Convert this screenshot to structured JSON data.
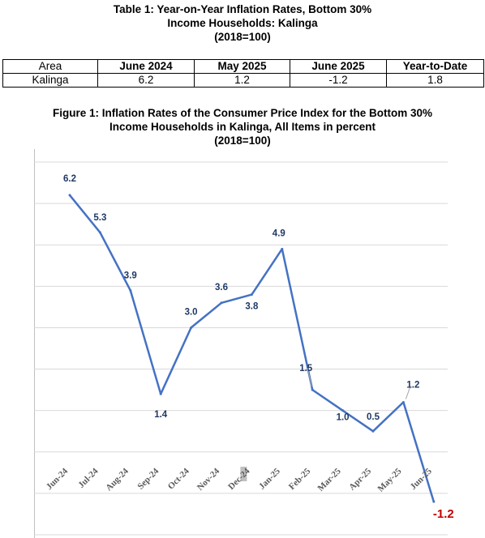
{
  "table": {
    "title_lines": [
      "Table 1:  Year-on-Year Inflation Rates, Bottom 30%",
      "Income Households: Kalinga",
      "(2018=100)"
    ],
    "headers": [
      "Area",
      "June 2024",
      "May 2025",
      "June 2025",
      "Year-to-Date"
    ],
    "rows": [
      [
        "Kalinga",
        "6.2",
        "1.2",
        "-1.2",
        "1.8"
      ]
    ]
  },
  "figure": {
    "title_lines": [
      "Figure 1: Inflation Rates of the Consumer Price Index for the Bottom 30%",
      "Income Households in Kalinga, All Items in percent",
      "(2018=100)"
    ]
  },
  "colors": {
    "line": "#4472C4",
    "label": "#1F3864",
    "negative_label": "#C00000",
    "grid": "#D9D9D9",
    "axis_label": "#595959"
  },
  "chart_data": {
    "type": "line",
    "categories": [
      "Jun-24",
      "Jul-24",
      "Aug-24",
      "Sep-24",
      "Oct-24",
      "Nov-24",
      "Dec-24",
      "Jan-25",
      "Feb-25",
      "Mar-25",
      "Apr-25",
      "May-25",
      "Jun-25"
    ],
    "values": [
      6.2,
      5.3,
      3.9,
      1.4,
      3.0,
      3.6,
      3.8,
      4.9,
      1.5,
      1.0,
      0.5,
      1.2,
      -1.2
    ],
    "data_labels": [
      "6.2",
      "5.3",
      "3.9",
      "1.4",
      "3.0",
      "3.6",
      "3.8",
      "4.9",
      "1.5",
      "1.0",
      "0.5",
      "1.2",
      "-1.2"
    ],
    "ylim": [
      -2,
      7
    ],
    "grid": true,
    "legend": "none"
  }
}
